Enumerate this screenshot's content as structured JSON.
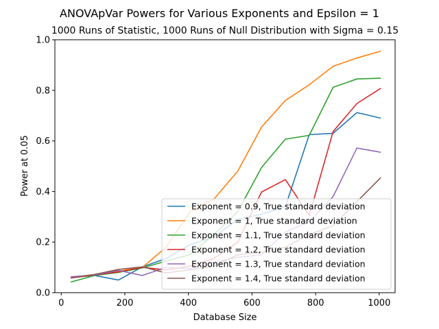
{
  "chart_data": {
    "type": "line",
    "title": "ANOVApVar Powers for Various Exponents and Epsilon = 1",
    "subtitle": "1000 Runs of Statistic, 1000 Runs of Null Distribution with Sigma = 0.15",
    "xlabel": "Database Size",
    "ylabel": "Power at 0.05",
    "xlim": [
      -20,
      1050
    ],
    "ylim": [
      0,
      1.0
    ],
    "xticks": [
      0,
      200,
      400,
      600,
      800,
      1000
    ],
    "yticks": [
      0.0,
      0.2,
      0.4,
      0.6,
      0.8,
      1.0
    ],
    "xtick_labels": [
      "0",
      "200",
      "400",
      "600",
      "800",
      "1000"
    ],
    "ytick_labels": [
      "0.0",
      "0.2",
      "0.4",
      "0.6",
      "0.8",
      "1.0"
    ],
    "legend_position": "lower-right",
    "grid": false,
    "x": [
      30,
      105,
      180,
      255,
      330,
      405,
      480,
      555,
      630,
      705,
      780,
      855,
      930,
      1005
    ],
    "series": [
      {
        "name": "Exponent = 0.9, True standard deviation",
        "color": "#1f77b4",
        "values": [
          0.06,
          0.068,
          0.05,
          0.102,
          0.135,
          0.19,
          0.22,
          0.29,
          0.31,
          0.34,
          0.625,
          0.63,
          0.712,
          0.69
        ]
      },
      {
        "name": "Exponent = 1, True standard deviation",
        "color": "#ff7f0e",
        "values": [
          0.06,
          0.072,
          0.085,
          0.1,
          0.18,
          0.32,
          0.37,
          0.48,
          0.655,
          0.76,
          0.822,
          0.895,
          0.928,
          0.955
        ]
      },
      {
        "name": "Exponent = 1.1, True standard deviation",
        "color": "#2ca02c",
        "values": [
          0.042,
          0.068,
          0.08,
          0.098,
          0.125,
          0.15,
          0.23,
          0.32,
          0.495,
          0.607,
          0.622,
          0.812,
          0.845,
          0.848
        ]
      },
      {
        "name": "Exponent = 1.2, True standard deviation",
        "color": "#d62728",
        "values": [
          0.058,
          0.07,
          0.082,
          0.1,
          0.09,
          0.105,
          0.135,
          0.2,
          0.398,
          0.447,
          0.305,
          0.637,
          0.748,
          0.808
        ]
      },
      {
        "name": "Exponent = 1.3, True standard deviation",
        "color": "#9467bd",
        "values": [
          0.063,
          0.07,
          0.088,
          0.068,
          0.1,
          0.095,
          0.12,
          0.14,
          0.15,
          0.24,
          0.28,
          0.38,
          0.572,
          0.555
        ]
      },
      {
        "name": "Exponent = 1.4, True standard deviation",
        "color": "#8c564b",
        "values": [
          0.058,
          0.072,
          0.092,
          0.102,
          0.078,
          0.09,
          0.105,
          0.15,
          0.16,
          0.18,
          0.23,
          0.265,
          0.36,
          0.455
        ]
      }
    ]
  }
}
